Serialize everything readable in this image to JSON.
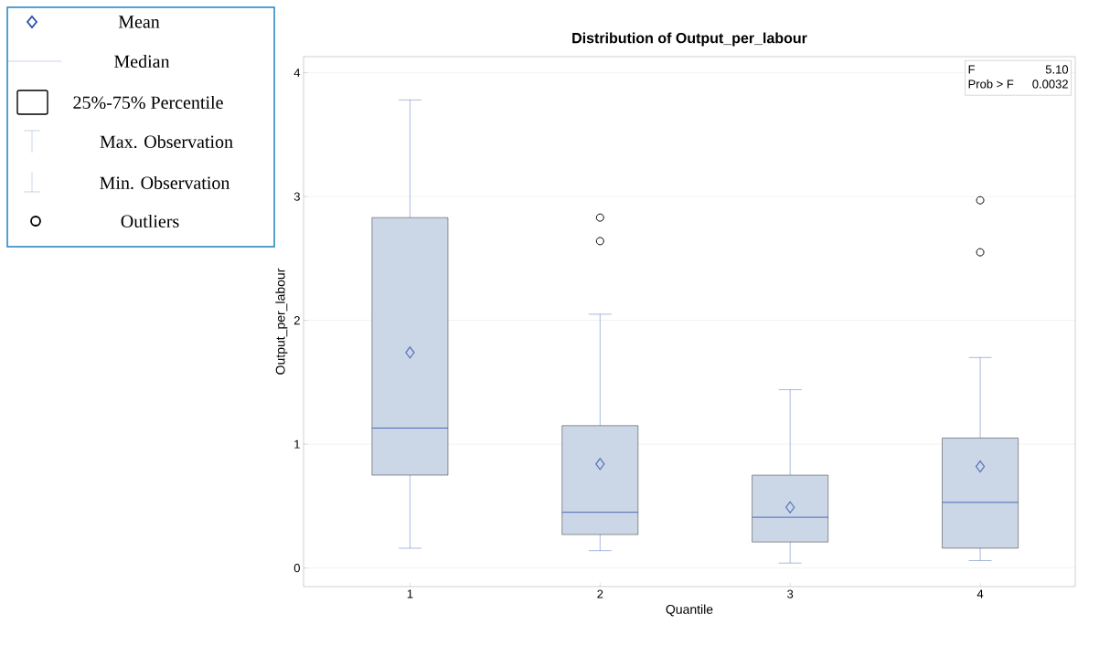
{
  "chart_data": {
    "type": "box",
    "title": "Distribution of Output_per_labour",
    "xlabel": "Quantile",
    "ylabel": "Output_per_labour",
    "categories": [
      "1",
      "2",
      "3",
      "4"
    ],
    "series": [
      {
        "color": "#cbd6e6",
        "boxes": [
          {
            "low": 0.16,
            "q1": 0.75,
            "median": 1.13,
            "q3": 2.83,
            "high": 3.78,
            "mean": 1.74
          },
          {
            "low": 0.14,
            "q1": 0.27,
            "median": 0.45,
            "q3": 1.15,
            "high": 2.05,
            "mean": 0.84,
            "outliers": [
              2.83,
              2.64
            ]
          },
          {
            "low": 0.04,
            "q1": 0.21,
            "median": 0.41,
            "q3": 0.75,
            "high": 1.44,
            "mean": 0.49
          },
          {
            "low": 0.06,
            "q1": 0.16,
            "median": 0.53,
            "q3": 1.05,
            "high": 1.7,
            "mean": 0.82,
            "outliers": [
              2.97,
              2.55
            ]
          }
        ]
      }
    ],
    "ylim": [
      -0.15,
      4.13
    ],
    "yticks": [
      0,
      1,
      2,
      3,
      4
    ],
    "grid": "y",
    "annotations": [
      "Mean",
      "Median",
      "25%-75% Percentile",
      "Max. Observation",
      "Min. Observation",
      "Outliers",
      "F",
      "5.10",
      "Prob > F",
      "0.0032"
    ]
  }
}
